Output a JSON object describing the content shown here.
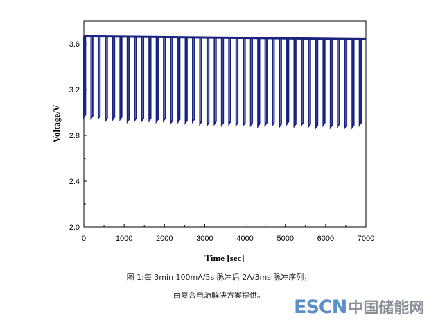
{
  "chart_data": {
    "type": "line",
    "xlabel": "Time [sec]",
    "ylabel": "Voltage/V",
    "xlim": [
      0,
      7000
    ],
    "ylim": [
      2.0,
      3.8
    ],
    "x_ticks": [
      0,
      1000,
      2000,
      3000,
      4000,
      5000,
      6000,
      7000
    ],
    "x_tick_labels": [
      "0",
      "1000",
      "2000",
      "3000",
      "4000",
      "5000",
      "6000",
      "7000"
    ],
    "y_ticks": [
      2.0,
      2.4,
      2.8,
      3.2,
      3.6
    ],
    "y_tick_labels": [
      "2.0",
      "2.4",
      "2.8",
      "3.2",
      "3.6"
    ],
    "grid": false,
    "series_color": "#1a237e",
    "baseline": {
      "x": [
        0,
        7000
      ],
      "y": [
        3.665,
        3.64
      ]
    },
    "pulses": {
      "x": [
        0,
        180,
        360,
        540,
        720,
        900,
        1080,
        1260,
        1440,
        1620,
        1800,
        1980,
        2160,
        2340,
        2520,
        2700,
        2880,
        3060,
        3240,
        3420,
        3600,
        3780,
        3960,
        4140,
        4320,
        4500,
        4680,
        4860,
        5040,
        5220,
        5400,
        5580,
        5760,
        5940,
        6120,
        6300,
        6480,
        6660,
        6840
      ],
      "min_voltage": [
        2.96,
        2.95,
        2.95,
        2.93,
        2.94,
        2.94,
        2.92,
        2.93,
        2.93,
        2.93,
        2.92,
        2.93,
        2.91,
        2.92,
        2.91,
        2.92,
        2.9,
        2.89,
        2.9,
        2.89,
        2.9,
        2.89,
        2.89,
        2.89,
        2.88,
        2.89,
        2.89,
        2.88,
        2.9,
        2.88,
        2.89,
        2.88,
        2.87,
        2.89,
        2.87,
        2.88,
        2.87,
        2.87,
        2.89
      ]
    }
  },
  "caption": {
    "line1": "图 1:每 3min 100mA/5s 脉冲后 2A/3ms 脉冲序列，",
    "line2": "由复合电源解决方案提供。"
  },
  "watermark": {
    "brand": "ESCN",
    "text": "中国储能网"
  }
}
